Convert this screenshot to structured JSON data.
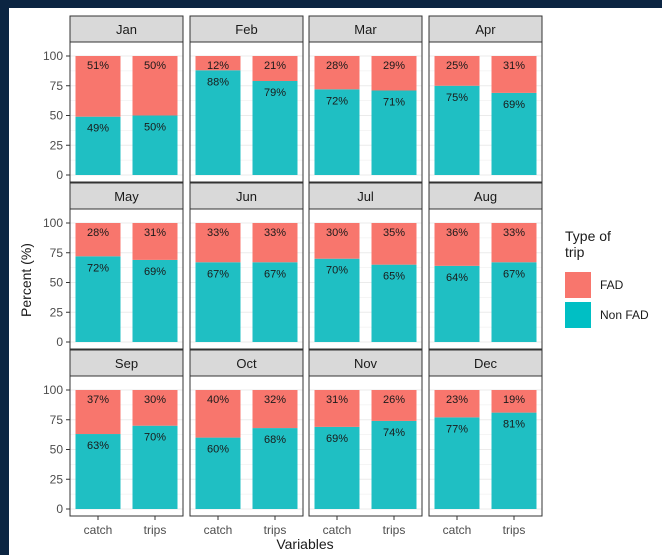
{
  "chart_data": {
    "type": "bar",
    "layout": "faceted-stacked-100",
    "xlabel": "Variables",
    "ylabel": "Percent (%)",
    "ylim": [
      0,
      100
    ],
    "yticks": [
      0,
      25,
      50,
      75,
      100
    ],
    "categories": [
      "catch",
      "trips"
    ],
    "legend": {
      "title": "Type of trip",
      "placement": "right",
      "entries": [
        {
          "name": "FAD",
          "color": "#f8766d"
        },
        {
          "name": "Non FAD",
          "color": "#00bfc4"
        }
      ]
    },
    "colors": {
      "fad": "#f8766d",
      "nonfad": "#1fbfc3",
      "strip": "#d9d9d9",
      "grid": "#ebebeb",
      "border": "#333333"
    },
    "series": [
      {
        "name": "FAD",
        "values": {
          "Jan": [
            51,
            50
          ],
          "Feb": [
            12,
            21
          ],
          "Mar": [
            28,
            29
          ],
          "Apr": [
            25,
            31
          ],
          "May": [
            28,
            31
          ],
          "Jun": [
            33,
            33
          ],
          "Jul": [
            30,
            35
          ],
          "Aug": [
            36,
            33
          ],
          "Sep": [
            37,
            30
          ],
          "Oct": [
            40,
            32
          ],
          "Nov": [
            31,
            26
          ],
          "Dec": [
            23,
            19
          ]
        }
      },
      {
        "name": "Non FAD",
        "values": {
          "Jan": [
            49,
            50
          ],
          "Feb": [
            88,
            79
          ],
          "Mar": [
            72,
            71
          ],
          "Apr": [
            75,
            69
          ],
          "May": [
            72,
            69
          ],
          "Jun": [
            67,
            67
          ],
          "Jul": [
            70,
            65
          ],
          "Aug": [
            64,
            67
          ],
          "Sep": [
            63,
            70
          ],
          "Oct": [
            60,
            68
          ],
          "Nov": [
            69,
            74
          ],
          "Dec": [
            77,
            81
          ]
        }
      }
    ],
    "facets": [
      {
        "label": "Jan",
        "fad": [
          51,
          50
        ],
        "nonfad": [
          49,
          50
        ]
      },
      {
        "label": "Feb",
        "fad": [
          12,
          21
        ],
        "nonfad": [
          88,
          79
        ]
      },
      {
        "label": "Mar",
        "fad": [
          28,
          29
        ],
        "nonfad": [
          72,
          71
        ]
      },
      {
        "label": "Apr",
        "fad": [
          25,
          31
        ],
        "nonfad": [
          75,
          69
        ]
      },
      {
        "label": "May",
        "fad": [
          28,
          31
        ],
        "nonfad": [
          72,
          69
        ]
      },
      {
        "label": "Jun",
        "fad": [
          33,
          33
        ],
        "nonfad": [
          67,
          67
        ]
      },
      {
        "label": "Jul",
        "fad": [
          30,
          35
        ],
        "nonfad": [
          70,
          65
        ]
      },
      {
        "label": "Aug",
        "fad": [
          36,
          33
        ],
        "nonfad": [
          64,
          67
        ]
      },
      {
        "label": "Sep",
        "fad": [
          37,
          30
        ],
        "nonfad": [
          63,
          70
        ]
      },
      {
        "label": "Oct",
        "fad": [
          40,
          32
        ],
        "nonfad": [
          60,
          68
        ]
      },
      {
        "label": "Nov",
        "fad": [
          31,
          26
        ],
        "nonfad": [
          69,
          74
        ]
      },
      {
        "label": "Dec",
        "fad": [
          23,
          19
        ],
        "nonfad": [
          77,
          81
        ]
      }
    ]
  }
}
